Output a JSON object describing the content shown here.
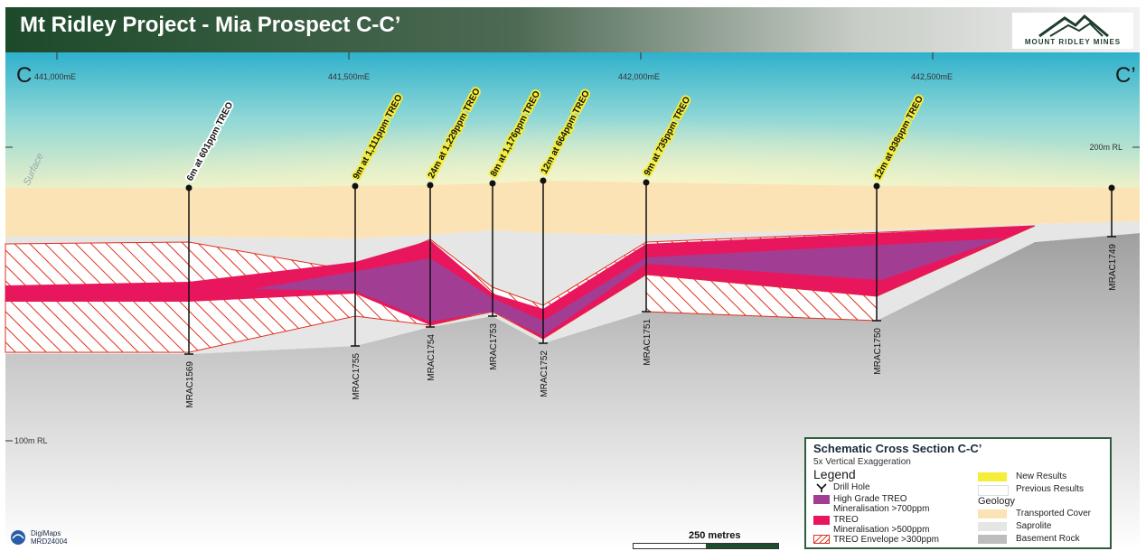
{
  "title": "Mt Ridley Project - Mia Prospect C-C’",
  "logo_text": "MOUNT RIDLEY MINES",
  "section_start": "C",
  "section_end": "C’",
  "eastings": [
    "441,000mE",
    "441,500mE",
    "442,000mE",
    "442,500mE"
  ],
  "rl_labels": [
    "200m RL",
    "100m RL"
  ],
  "surface_label": "Surface",
  "drill_holes": [
    {
      "id": "MRAC1569",
      "result": "6m at 601ppm TREO",
      "new": false
    },
    {
      "id": "MRAC1755",
      "result": "9m at 1,111ppm TREO",
      "new": true
    },
    {
      "id": "MRAC1754",
      "result": "24m at 1,229ppm TREO",
      "new": true
    },
    {
      "id": "MRAC1753",
      "result": "8m at 1,176ppm TREO",
      "new": true
    },
    {
      "id": "MRAC1752",
      "result": "12m at 664ppm TREO",
      "new": true
    },
    {
      "id": "MRAC1751",
      "result": "9m at 735ppm TREO",
      "new": true
    },
    {
      "id": "MRAC1750",
      "result": "12m at 938ppm TREO",
      "new": true
    },
    {
      "id": "MRAC1749",
      "result": "",
      "new": false
    }
  ],
  "legend": {
    "title": "Schematic Cross Section C-C’",
    "subtitle": "5x Vertical Exaggeration",
    "heading": "Legend",
    "drill_hole": "Drill Hole",
    "hg_line1": "High Grade TREO",
    "hg_line2": "Mineralisation >700ppm",
    "treo_line1": "TREO",
    "treo_line2": "Mineralisation >500ppm",
    "envelope": "TREO Envelope >300ppm",
    "new_results": "New Results",
    "previous_results": "Previous Results",
    "geology": "Geology",
    "transported": "Transported Cover",
    "saprolite": "Saprolite",
    "basement": "Basement Rock"
  },
  "scale_label": "250 metres",
  "digimaps_line1": "DigiMaps",
  "digimaps_line2": "MRD24004",
  "colors": {
    "sky_top": "#35b6cf",
    "sky_bottom": "#f4f3c6",
    "transported": "#fbe3b6",
    "saprolite": "#e6e6e6",
    "basement": "#bdbdbd",
    "treo": "#e8175d",
    "high_grade": "#a13e93",
    "envelope": "#e0301e",
    "new_result_highlight": "#f4ed3a",
    "title_bar_dark": "#1f4a2c",
    "legend_border": "#2e5d3f"
  }
}
